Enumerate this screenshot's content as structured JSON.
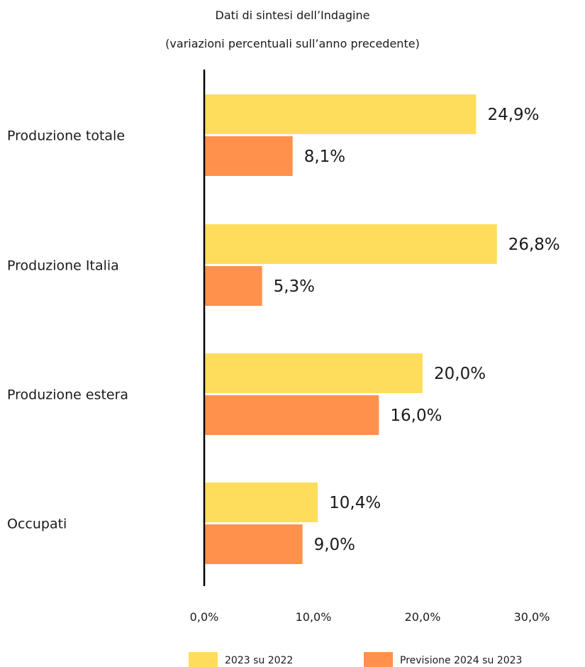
{
  "chart_data": {
    "type": "bar",
    "orientation": "horizontal",
    "title": "Dati di sintesi dell’Indagine",
    "subtitle": "(variazioni percentuali sull’anno precedente)",
    "categories": [
      "Produzione totale",
      "Produzione Italia",
      "Produzione estera",
      "Occupati"
    ],
    "series": [
      {
        "name": "2023 su 2022",
        "color": "#FFDD5C",
        "values": [
          24.9,
          26.8,
          20.0,
          10.4
        ],
        "labels": [
          "24,9%",
          "26,8%",
          "20,0%",
          "10,4%"
        ]
      },
      {
        "name": "Previsione 2024 su 2023",
        "color": "#FF914D",
        "values": [
          8.1,
          5.3,
          16.0,
          9.0
        ],
        "labels": [
          "8,1%",
          "5,3%",
          "16,0%",
          "9,0%"
        ]
      }
    ],
    "xlim": [
      0,
      30
    ],
    "xticks": [
      0,
      10,
      20,
      30
    ],
    "xtick_labels": [
      "0,0%",
      "10,0%",
      "20,0%",
      "30,0%"
    ],
    "grid": false,
    "legend_position": "bottom"
  }
}
